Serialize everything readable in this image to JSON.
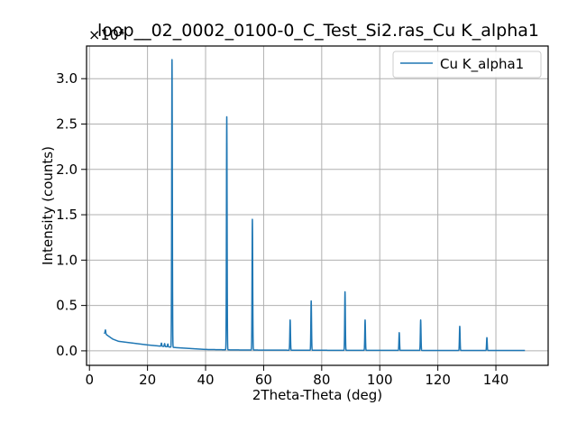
{
  "chart_data": {
    "type": "line",
    "title": "loop__02_0002_0100-0_C_Test_Si2.ras_Cu K_alpha1",
    "xlabel": "2Theta-Theta (deg)",
    "ylabel": "Intensity (counts)",
    "offset_text": "×10⁴",
    "xlim": [
      -1,
      158
    ],
    "ylim": [
      -0.16,
      3.36
    ],
    "xticks": [
      0,
      20,
      40,
      60,
      80,
      100,
      120,
      140
    ],
    "yticks": [
      0.0,
      0.5,
      1.0,
      1.5,
      2.0,
      2.5,
      3.0
    ],
    "xtick_labels": [
      "0",
      "20",
      "40",
      "60",
      "80",
      "100",
      "120",
      "140"
    ],
    "ytick_labels": [
      "0.0",
      "0.5",
      "1.0",
      "1.5",
      "2.0",
      "2.5",
      "3.0"
    ],
    "grid": true,
    "legend_position": "top-right",
    "series": [
      {
        "name": "Cu K_alpha1",
        "color": "#1f77b4",
        "x_range": [
          5,
          150
        ],
        "baseline": [
          [
            5,
            0.2
          ],
          [
            6,
            0.175
          ],
          [
            8,
            0.13
          ],
          [
            10,
            0.105
          ],
          [
            15,
            0.085
          ],
          [
            20,
            0.065
          ],
          [
            25,
            0.05
          ],
          [
            30,
            0.035
          ],
          [
            35,
            0.025
          ],
          [
            40,
            0.015
          ],
          [
            50,
            0.01
          ],
          [
            60,
            0.008
          ],
          [
            80,
            0.006
          ],
          [
            100,
            0.005
          ],
          [
            150,
            0.004
          ]
        ],
        "peaks": [
          {
            "x": 5.5,
            "y": 0.23
          },
          {
            "x": 24.8,
            "y": 0.085
          },
          {
            "x": 25.9,
            "y": 0.08
          },
          {
            "x": 27.0,
            "y": 0.075
          },
          {
            "x": 28.44,
            "y": 3.21
          },
          {
            "x": 47.3,
            "y": 2.58
          },
          {
            "x": 56.12,
            "y": 1.45
          },
          {
            "x": 69.13,
            "y": 0.34
          },
          {
            "x": 76.38,
            "y": 0.55
          },
          {
            "x": 88.03,
            "y": 0.65
          },
          {
            "x": 94.95,
            "y": 0.34
          },
          {
            "x": 106.71,
            "y": 0.2
          },
          {
            "x": 114.09,
            "y": 0.34
          },
          {
            "x": 127.55,
            "y": 0.27
          },
          {
            "x": 136.9,
            "y": 0.145
          }
        ]
      }
    ]
  }
}
